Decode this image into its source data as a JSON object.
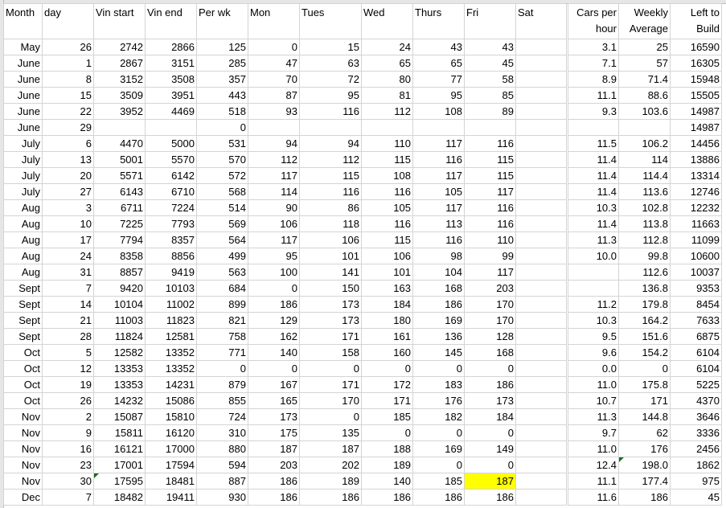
{
  "headers": [
    "Month",
    "day",
    "Vin start",
    "Vin end",
    "Per wk",
    "Mon",
    "Tues",
    "Wed",
    "Thurs",
    "Fri",
    "Sat",
    "Cars per hour",
    "Weekly Average",
    "Left to Build"
  ],
  "highlight_color": "#ffff00",
  "highlighted_cell": {
    "row": "Nov 30",
    "column": "Fri",
    "value": "187"
  },
  "rows": [
    [
      "May",
      "26",
      "2742",
      "2866",
      "125",
      "0",
      "15",
      "24",
      "43",
      "43",
      "",
      "3.1",
      "25",
      "16590"
    ],
    [
      "June",
      "1",
      "2867",
      "3151",
      "285",
      "47",
      "63",
      "65",
      "65",
      "45",
      "",
      "7.1",
      "57",
      "16305"
    ],
    [
      "June",
      "8",
      "3152",
      "3508",
      "357",
      "70",
      "72",
      "80",
      "77",
      "58",
      "",
      "8.9",
      "71.4",
      "15948"
    ],
    [
      "June",
      "15",
      "3509",
      "3951",
      "443",
      "87",
      "95",
      "81",
      "95",
      "85",
      "",
      "11.1",
      "88.6",
      "15505"
    ],
    [
      "June",
      "22",
      "3952",
      "4469",
      "518",
      "93",
      "116",
      "112",
      "108",
      "89",
      "",
      "9.3",
      "103.6",
      "14987"
    ],
    [
      "June",
      "29",
      "",
      "",
      "0",
      "",
      "",
      "",
      "",
      "",
      "",
      "",
      "",
      "14987"
    ],
    [
      "July",
      "6",
      "4470",
      "5000",
      "531",
      "94",
      "94",
      "110",
      "117",
      "116",
      "",
      "11.5",
      "106.2",
      "14456"
    ],
    [
      "July",
      "13",
      "5001",
      "5570",
      "570",
      "112",
      "112",
      "115",
      "116",
      "115",
      "",
      "11.4",
      "114",
      "13886"
    ],
    [
      "July",
      "20",
      "5571",
      "6142",
      "572",
      "117",
      "115",
      "108",
      "117",
      "115",
      "",
      "11.4",
      "114.4",
      "13314"
    ],
    [
      "July",
      "27",
      "6143",
      "6710",
      "568",
      "114",
      "116",
      "116",
      "105",
      "117",
      "",
      "11.4",
      "113.6",
      "12746"
    ],
    [
      "Aug",
      "3",
      "6711",
      "7224",
      "514",
      "90",
      "86",
      "105",
      "117",
      "116",
      "",
      "10.3",
      "102.8",
      "12232"
    ],
    [
      "Aug",
      "10",
      "7225",
      "7793",
      "569",
      "106",
      "118",
      "116",
      "113",
      "116",
      "",
      "11.4",
      "113.8",
      "11663"
    ],
    [
      "Aug",
      "17",
      "7794",
      "8357",
      "564",
      "117",
      "106",
      "115",
      "116",
      "110",
      "",
      "11.3",
      "112.8",
      "11099"
    ],
    [
      "Aug",
      "24",
      "8358",
      "8856",
      "499",
      "95",
      "101",
      "106",
      "98",
      "99",
      "",
      "10.0",
      "99.8",
      "10600"
    ],
    [
      "Aug",
      "31",
      "8857",
      "9419",
      "563",
      "100",
      "141",
      "101",
      "104",
      "117",
      "",
      "",
      "112.6",
      "10037"
    ],
    [
      "Sept",
      "7",
      "9420",
      "10103",
      "684",
      "0",
      "150",
      "163",
      "168",
      "203",
      "",
      "",
      "136.8",
      "9353"
    ],
    [
      "Sept",
      "14",
      "10104",
      "11002",
      "899",
      "186",
      "173",
      "184",
      "186",
      "170",
      "",
      "11.2",
      "179.8",
      "8454"
    ],
    [
      "Sept",
      "21",
      "11003",
      "11823",
      "821",
      "129",
      "173",
      "180",
      "169",
      "170",
      "",
      "10.3",
      "164.2",
      "7633"
    ],
    [
      "Sept",
      "28",
      "11824",
      "12581",
      "758",
      "162",
      "171",
      "161",
      "136",
      "128",
      "",
      "9.5",
      "151.6",
      "6875"
    ],
    [
      "Oct",
      "5",
      "12582",
      "13352",
      "771",
      "140",
      "158",
      "160",
      "145",
      "168",
      "",
      "9.6",
      "154.2",
      "6104"
    ],
    [
      "Oct",
      "12",
      "13353",
      "13352",
      "0",
      "0",
      "0",
      "0",
      "0",
      "0",
      "",
      "0.0",
      "0",
      "6104"
    ],
    [
      "Oct",
      "19",
      "13353",
      "14231",
      "879",
      "167",
      "171",
      "172",
      "183",
      "186",
      "",
      "11.0",
      "175.8",
      "5225"
    ],
    [
      "Oct",
      "26",
      "14232",
      "15086",
      "855",
      "165",
      "170",
      "171",
      "176",
      "173",
      "",
      "10.7",
      "171",
      "4370"
    ],
    [
      "Nov",
      "2",
      "15087",
      "15810",
      "724",
      "173",
      "0",
      "185",
      "182",
      "184",
      "",
      "11.3",
      "144.8",
      "3646"
    ],
    [
      "Nov",
      "9",
      "15811",
      "16120",
      "310",
      "175",
      "135",
      "0",
      "0",
      "0",
      "",
      "9.7",
      "62",
      "3336"
    ],
    [
      "Nov",
      "16",
      "16121",
      "17000",
      "880",
      "187",
      "187",
      "188",
      "169",
      "149",
      "",
      "11.0",
      "176",
      "2456"
    ],
    [
      "Nov",
      "23",
      "17001",
      "17594",
      "594",
      "203",
      "202",
      "189",
      "0",
      "0",
      "",
      "12.4",
      "198.0",
      "1862"
    ],
    [
      "Nov",
      "30",
      "17595",
      "18481",
      "887",
      "186",
      "189",
      "140",
      "185",
      "187",
      "",
      "11.1",
      "177.4",
      "975"
    ],
    [
      "Dec",
      "7",
      "18482",
      "19411",
      "930",
      "186",
      "186",
      "186",
      "186",
      "186",
      "",
      "11.6",
      "186",
      "45"
    ]
  ]
}
